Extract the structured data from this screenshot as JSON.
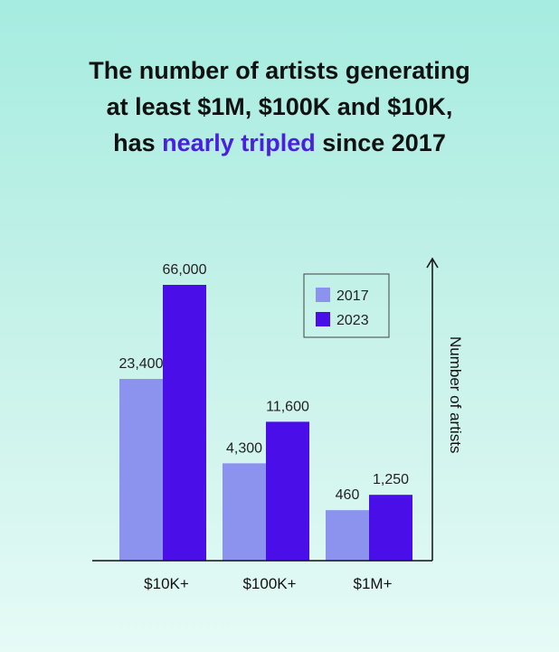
{
  "title": {
    "line1": "The number of artists generating",
    "line2": "at least $1M, $100K and $10K,",
    "line3_before": "has ",
    "line3_highlight": "nearly tripled",
    "line3_after": " since 2017"
  },
  "colors": {
    "series_2017": "#8b93ef",
    "series_2023": "#4a0ee8",
    "highlight": "#4a1fe0",
    "axis": "#111111"
  },
  "chart_data": {
    "type": "bar",
    "categories": [
      "$10K+",
      "$100K+",
      "$1M+"
    ],
    "series": [
      {
        "name": "2017",
        "values": [
          23400,
          4300,
          460
        ],
        "labels": [
          "23,400",
          "4,300",
          "460"
        ]
      },
      {
        "name": "2023",
        "values": [
          66000,
          11600,
          1250
        ],
        "labels": [
          "66,000",
          "11,600",
          "1,250"
        ]
      }
    ],
    "ylabel": "Number of artists",
    "xlabel": "",
    "legend_position": "top-right",
    "grid": false
  }
}
